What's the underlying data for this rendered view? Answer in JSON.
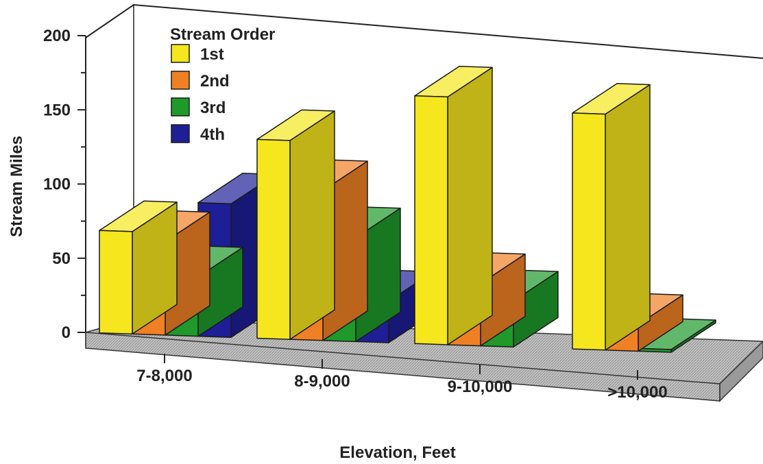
{
  "chart_data": {
    "type": "bar",
    "title": "",
    "xlabel": "Elevation, Feet",
    "ylabel": "Stream Miles",
    "ylim": [
      0,
      200
    ],
    "yticks": [
      "0",
      "50",
      "100",
      "150",
      "200"
    ],
    "categories": [
      "7-8,000",
      "8-9,000",
      "9-10,000",
      ">10,000"
    ],
    "legend_title": "Stream Order",
    "legend_position": "top-left",
    "three_d": true,
    "series": [
      {
        "name": "1st",
        "color": "#f5e61e",
        "values": [
          69,
          134,
          167,
          159
        ]
      },
      {
        "name": "2nd",
        "color": "#f08024",
        "values": [
          63,
          101,
          42,
          18
        ]
      },
      {
        "name": "3rd",
        "color": "#1f9a2a",
        "values": [
          40,
          70,
          31,
          0.5
        ]
      },
      {
        "name": "4th",
        "color": "#1e1e96",
        "values": [
          90,
          28,
          null,
          null
        ]
      }
    ]
  }
}
